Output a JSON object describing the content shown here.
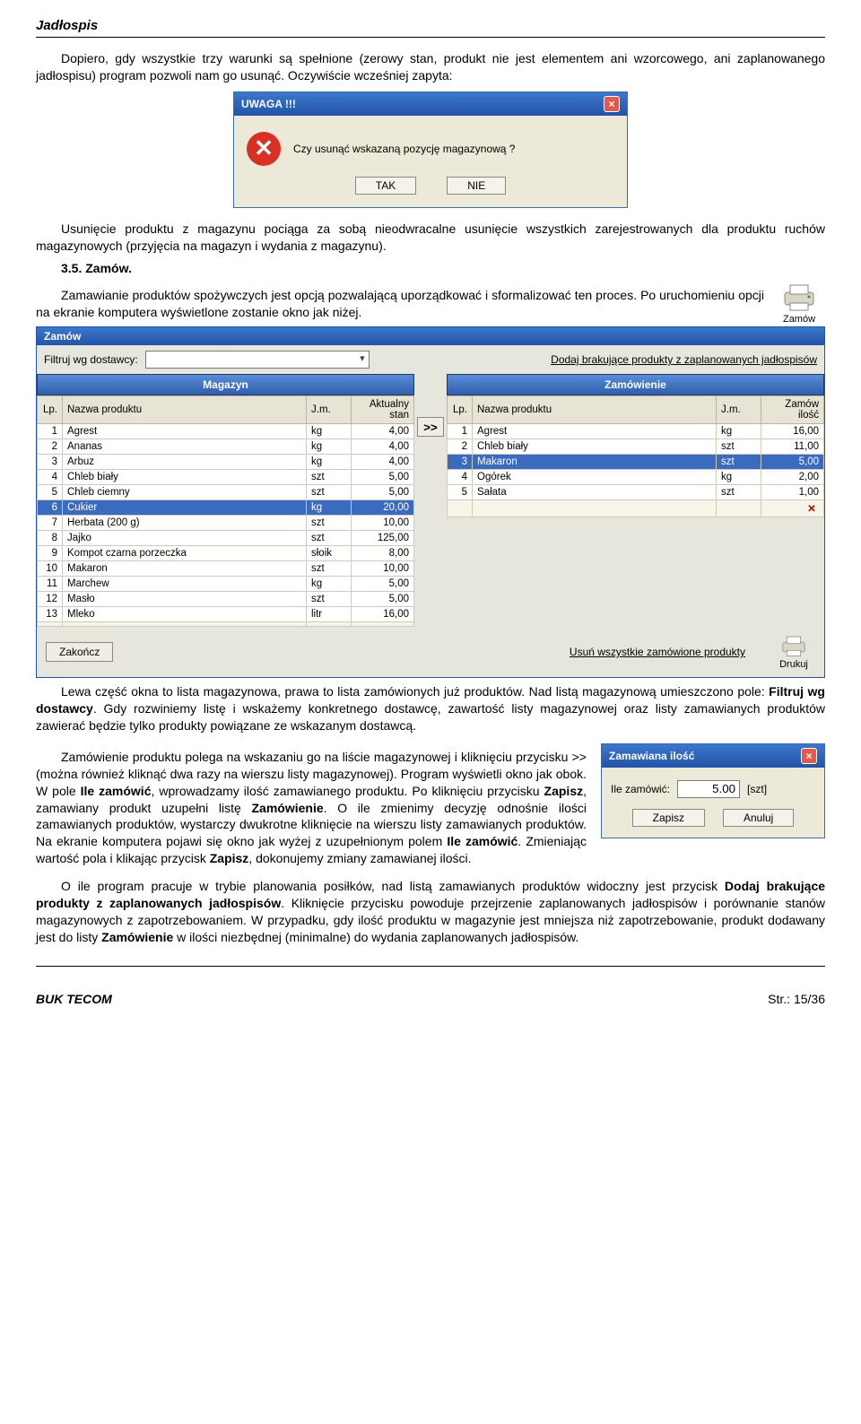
{
  "doc": {
    "title": "Jadłospis",
    "p1": "Dopiero, gdy wszystkie trzy warunki są spełnione (zerowy stan, produkt nie jest elementem ani wzorcowego, ani zaplanowanego jadłospisu) program pozwoli nam go usunąć. Oczywiście wcześniej zapyta:",
    "dlg_uwaga_title": "UWAGA !!!",
    "dlg_uwaga_text": "Czy usunąć wskazaną pozycję magazynową ?",
    "dlg_tak": "TAK",
    "dlg_nie": "NIE",
    "p2": "Usunięcie produktu z magazynu pociąga za sobą nieodwracalne usunięcie wszystkich zarejestrowanych dla produktu ruchów magazynowych (przyjęcia na magazyn i wydania z magazynu).",
    "h35": "3.5. Zamów.",
    "p3": "Zamawianie produktów spożywczych jest opcją pozwalającą uporządkować i sformalizować ten proces. Po uruchomieniu opcji na ekranie komputera wyświetlone zostanie okno jak niżej.",
    "zamow_icon_label": "Zamów",
    "p4a": "Lewa część okna to lista magazynowa, prawa to lista zamówionych już produktów. Nad listą magazynową umieszczono pole: ",
    "p4b": "Filtruj wg dostawcy",
    "p4c": ". Gdy rozwiniemy listę i wskażemy konkretnego dostawcę, zawartość listy magazynowej oraz listy zamawianych produktów zawierać będzie tylko produkty powiązane ze wskazanym dostawcą.",
    "p5a": "Zamówienie produktu polega na wskazaniu go na liście magazynowej i kliknięciu przycisku >> (można również kliknąć dwa razy na wierszu listy magazynowej). Program wyświetli okno jak obok. W pole ",
    "p5b": "Ile zamówić",
    "p5c": ", wprowadzamy ilość zamawianego produktu. Po kliknięciu przycisku ",
    "p5d": "Zapisz",
    "p5e": ", zamawiany produkt uzupełni listę ",
    "p5f": "Zamówienie",
    "p5g": ". O ile zmienimy decyzję odnośnie ilości zamawianych produktów, wystarczy dwukrotne kliknięcie na wierszu listy zamawianych produktów. Na ekranie komputera pojawi się okno jak wyżej z uzupełnionym polem ",
    "p5h": "Ile zamówić",
    "p5i": ". Zmieniając wartość pola i klikając przycisk ",
    "p5j": "Zapisz",
    "p5k": ", dokonujemy zmiany zamawianej ilości.",
    "p6a": "O ile program pracuje w trybie planowania posiłków, nad listą zamawianych produktów widoczny jest przycisk ",
    "p6b": "Dodaj brakujące produkty z zaplanowanych jadłospisów",
    "p6c": ". Kliknięcie przycisku powoduje przejrzenie zaplanowanych jadłospisów i porównanie stanów magazynowych z zapotrzebowaniem. W przypadku, gdy ilość produktu w magazynie jest mniejsza niż zapotrzebowanie, produkt dodawany jest do listy ",
    "p6d": "Zamówienie",
    "p6e": " w ilości niezbędnej (minimalne) do wydania zaplanowanych jadłospisów.",
    "footer_brand": "BUK TECOM",
    "footer_page": "Str.: 15/36"
  },
  "zamow_win": {
    "title": "Zamów",
    "filter_label": "Filtruj wg dostawcy:",
    "link_add": "Dodaj brakujące produkty z zaplanowanych jadłospisów",
    "hdr_left": "Magazyn",
    "hdr_right": "Zamówienie",
    "cols_left": {
      "lp": "Lp.",
      "name": "Nazwa produktu",
      "jm": "J.m.",
      "stan": "Aktualny stan"
    },
    "cols_right": {
      "lp": "Lp.",
      "name": "Nazwa produktu",
      "jm": "J.m.",
      "qty": "Zamów ilość"
    },
    "rows_left": [
      {
        "lp": "1",
        "name": "Agrest",
        "jm": "kg",
        "stan": "4,00"
      },
      {
        "lp": "2",
        "name": "Ananas",
        "jm": "kg",
        "stan": "4,00"
      },
      {
        "lp": "3",
        "name": "Arbuz",
        "jm": "kg",
        "stan": "4,00"
      },
      {
        "lp": "4",
        "name": "Chleb biały",
        "jm": "szt",
        "stan": "5,00"
      },
      {
        "lp": "5",
        "name": "Chleb ciemny",
        "jm": "szt",
        "stan": "5,00"
      },
      {
        "lp": "6",
        "name": "Cukier",
        "jm": "kg",
        "stan": "20,00",
        "sel": true
      },
      {
        "lp": "7",
        "name": "Herbata (200 g)",
        "jm": "szt",
        "stan": "10,00"
      },
      {
        "lp": "8",
        "name": "Jajko",
        "jm": "szt",
        "stan": "125,00"
      },
      {
        "lp": "9",
        "name": "Kompot czarna porzeczka",
        "jm": "słoik",
        "stan": "8,00"
      },
      {
        "lp": "10",
        "name": "Makaron",
        "jm": "szt",
        "stan": "10,00"
      },
      {
        "lp": "11",
        "name": "Marchew",
        "jm": "kg",
        "stan": "5,00"
      },
      {
        "lp": "12",
        "name": "Masło",
        "jm": "szt",
        "stan": "5,00"
      },
      {
        "lp": "13",
        "name": "Mleko",
        "jm": "litr",
        "stan": "16,00"
      }
    ],
    "rows_right": [
      {
        "lp": "1",
        "name": "Agrest",
        "jm": "kg",
        "qty": "16,00"
      },
      {
        "lp": "2",
        "name": "Chleb biały",
        "jm": "szt",
        "qty": "11,00"
      },
      {
        "lp": "3",
        "name": "Makaron",
        "jm": "szt",
        "qty": "5,00",
        "sel": true
      },
      {
        "lp": "4",
        "name": "Ogórek",
        "jm": "kg",
        "qty": "2,00"
      },
      {
        "lp": "5",
        "name": "Sałata",
        "jm": "szt",
        "qty": "1,00"
      }
    ],
    "btn_close": "Zakończ",
    "btn_removeall": "Usuń wszystkie zamówione produkty",
    "btn_print": "Drukuj"
  },
  "dlg_ilosc": {
    "title": "Zamawiana ilość",
    "label": "Ile zamówić:",
    "value": "5.00",
    "unit": "[szt]",
    "btn_save": "Zapisz",
    "btn_cancel": "Anuluj"
  }
}
